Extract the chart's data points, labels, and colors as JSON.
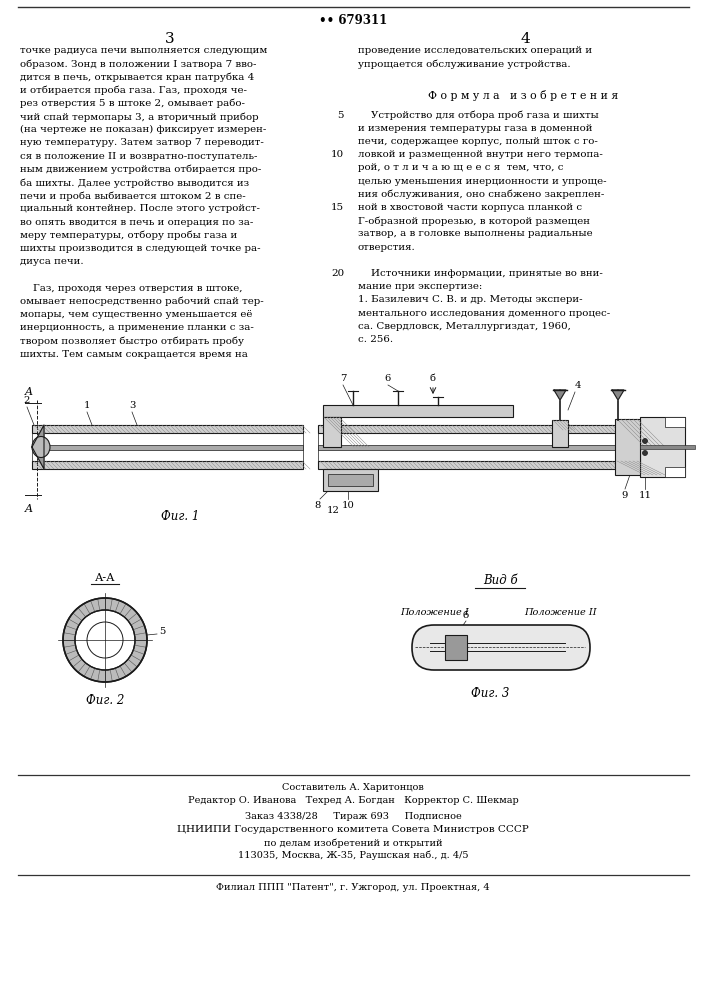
{
  "page_bg": "#ffffff",
  "text_color": "#000000",
  "patent_number": "679311",
  "page_number_left": "3",
  "page_number_right": "4",
  "col1_text": [
    "точке радиуса печи выполняется следующим",
    "образом. Зонд в положении I затвора 7 вво-",
    "дится в печь, открывается кран патрубка 4",
    "и отбирается проба газа. Газ, проходя че-",
    "рез отверстия 5 в штоке 2, омывает рабо-",
    "чий спай термопары 3, а вторичный прибор",
    "(на чертеже не показан) фиксирует измерен-",
    "ную температуру. Затем затвор 7 переводит-",
    "ся в положение II и возвратно-поступатель-",
    "ным движением устройства отбирается про-",
    "ба шихты. Далее устройство выводится из",
    "печи и проба выбивается штоком 2 в спе-",
    "циальный контейнер. После этого устройст-",
    "во опять вводится в печь и операция по за-",
    "меру температуры, отбору пробы газа и",
    "шихты производится в следующей точке ра-",
    "диуса печи.",
    "",
    "    Газ, проходя через отверстия в штоке,",
    "омывает непосредственно рабочий спай тер-",
    "мопары, чем существенно уменьшается её",
    "инерционность, а применение планки с за-",
    "твором позволяет быстро отбирать пробу",
    "шихты. Тем самым сокращается время на"
  ],
  "col2_header_line1": "проведение исследовательских операций и",
  "col2_header_line2": "упрощается обслуживание устройства.",
  "formula_header": "Ф о р м у л а   и з о б р е т е н и я",
  "col2_text": [
    "    Устройство для отбора проб газа и шихты",
    "и измерения температуры газа в доменной",
    "печи, содержащее корпус, полый шток с го-",
    "ловкой и размещенной внутри него термопа-",
    "рой, о т л и ч а ю щ е е с я  тем, что, с",
    "целью уменьшения инерционности и упроще-",
    "ния обслуживания, оно снабжено закреплен-",
    "ной в хвостовой части корпуса планкой с",
    "Г-образной прорезью, в которой размещен",
    "затвор, а в головке выполнены радиальные",
    "отверстия.",
    "",
    "    Источники информации, принятые во вни-",
    "мание при экспертизе:",
    "1. Базилевич С. В. и др. Методы экспери-",
    "ментального исследования доменного процес-",
    "са. Свердловск, Металлургиздат, 1960,",
    "с. 256."
  ],
  "line_numbers": {
    "0": "5",
    "3": "10",
    "7": "15",
    "12": "20"
  },
  "fig1_label": "Фиг. 1",
  "fig2_label": "Фиг. 2",
  "fig3_label": "Фиг. 3",
  "fig2_title": "А-А",
  "fig3_title": "Вид б",
  "fig3_pos1": "Положение I",
  "fig3_pos2": "Положение II",
  "bottom_line1": "Составитель А. Харитонцов",
  "bottom_line2": "Редактор О. Иванова   Техред А. Богдан   Корректор С. Шекмар",
  "bottom_line3": "Заказ 4338/28     Тираж 693     Подписное",
  "bottom_line4": "ЦНИИПИ Государственного комитета Совета Министров СССР",
  "bottom_line5": "по делам изобретений и открытий",
  "bottom_line6": "113035, Москва, Ж-35, Раушская наб., д. 4/5",
  "bottom_line7": "Филиал ППП \"Патент\", г. Ужгород, ул. Проектная, 4"
}
